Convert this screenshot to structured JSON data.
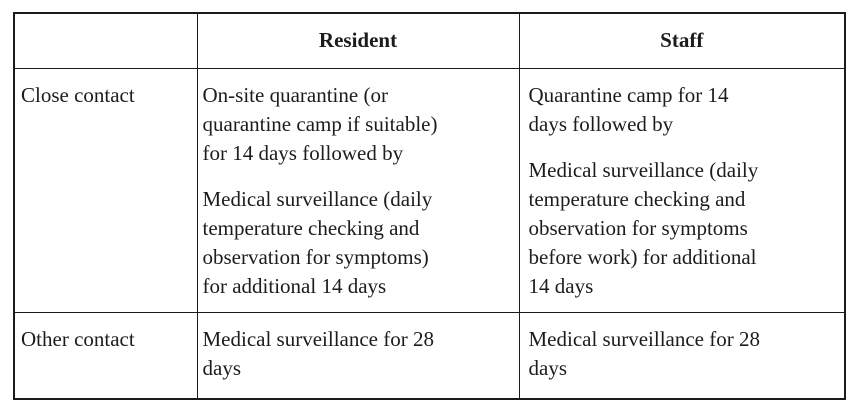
{
  "colors": {
    "background": "#ffffff",
    "border": "#1b1b1b",
    "text": "#1c1c1c"
  },
  "table": {
    "header": {
      "corner": "",
      "resident": "Resident",
      "staff": "Staff"
    },
    "rows": [
      {
        "label": "Close contact",
        "resident": [
          "On-site quarantine (or\nquarantine camp if suitable)\nfor 14 days followed by",
          "Medical surveillance (daily\ntemperature checking and\nobservation for symptoms)\nfor additional 14 days"
        ],
        "staff": [
          "Quarantine camp for 14\ndays followed by",
          "Medical surveillance (daily\ntemperature checking and\nobservation for symptoms\nbefore work) for additional\n14 days"
        ]
      },
      {
        "label": "Other contact",
        "resident": [
          "Medical surveillance for 28\ndays"
        ],
        "staff": [
          "Medical surveillance for 28\ndays"
        ]
      }
    ]
  }
}
